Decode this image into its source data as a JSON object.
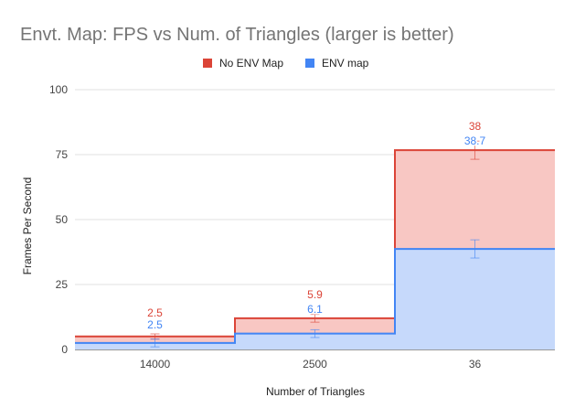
{
  "chart_data": {
    "type": "area",
    "step": true,
    "stacked": true,
    "title": "Envt. Map: FPS vs Num. of Triangles (larger is better)",
    "xlabel": "Number of Triangles",
    "ylabel": "Frames Per Second",
    "categories": [
      "14000",
      "2500",
      "36"
    ],
    "ylim": [
      0,
      100
    ],
    "yticks": [
      0,
      25,
      50,
      75,
      100
    ],
    "grid": true,
    "legend_position": "top",
    "error_bars": true,
    "series": [
      {
        "name": "ENV map",
        "values": [
          2.5,
          6.1,
          38.7
        ],
        "labels": [
          "2.5",
          "6.1",
          "38.7"
        ],
        "color": "#4285f4",
        "fill": "#c6d9fb",
        "error": [
          1.5,
          1.5,
          3.5
        ]
      },
      {
        "name": "No ENV Map",
        "values": [
          2.5,
          5.9,
          38
        ],
        "labels": [
          "2.5",
          "5.9",
          "38"
        ],
        "color": "#db4437",
        "fill": "#f8c7c3",
        "error": [
          1.0,
          1.5,
          3.5
        ]
      }
    ]
  }
}
